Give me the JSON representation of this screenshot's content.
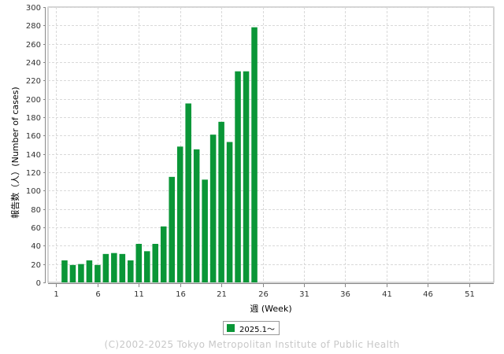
{
  "chart_data": {
    "type": "bar",
    "xlabel": "週 (Week)",
    "ylabel": "報告数（人）(Number of cases)",
    "xlim": [
      0,
      54
    ],
    "ylim": [
      0,
      300
    ],
    "x_ticks": [
      1,
      6,
      11,
      16,
      21,
      26,
      31,
      36,
      41,
      46,
      51
    ],
    "y_ticks": [
      0,
      20,
      40,
      60,
      80,
      100,
      120,
      140,
      160,
      180,
      200,
      220,
      240,
      260,
      280,
      300
    ],
    "grid": true,
    "legend_position": "bottom-center",
    "series": [
      {
        "name": "2025.1〜",
        "color": "#0a9637",
        "x": [
          1,
          2,
          3,
          4,
          5,
          6,
          7,
          8,
          9,
          10,
          11,
          12,
          13,
          14,
          15,
          16,
          17,
          18,
          19,
          20,
          21,
          22,
          23,
          24,
          25,
          26,
          27,
          28,
          29,
          30,
          31,
          32,
          33,
          34,
          35,
          36,
          37,
          38,
          39,
          40,
          41,
          42,
          43,
          44,
          45,
          46,
          47,
          48,
          49,
          50,
          51,
          52,
          53
        ],
        "values": [
          0,
          24,
          19,
          20,
          24,
          19,
          31,
          32,
          31,
          24,
          42,
          34,
          42,
          61,
          115,
          148,
          195,
          145,
          112,
          161,
          175,
          153,
          230,
          230,
          278,
          0,
          0,
          0,
          0,
          0,
          0,
          0,
          0,
          0,
          0,
          0,
          0,
          0,
          0,
          0,
          0,
          0,
          0,
          0,
          0,
          0,
          0,
          0,
          0,
          0,
          0,
          0,
          0
        ]
      }
    ]
  },
  "legend": {
    "label": "2025.1〜",
    "color": "#0a9637"
  },
  "footer": {
    "copyright": "(C)2002-2025 Tokyo Metropolitan Institute of Public Health"
  }
}
